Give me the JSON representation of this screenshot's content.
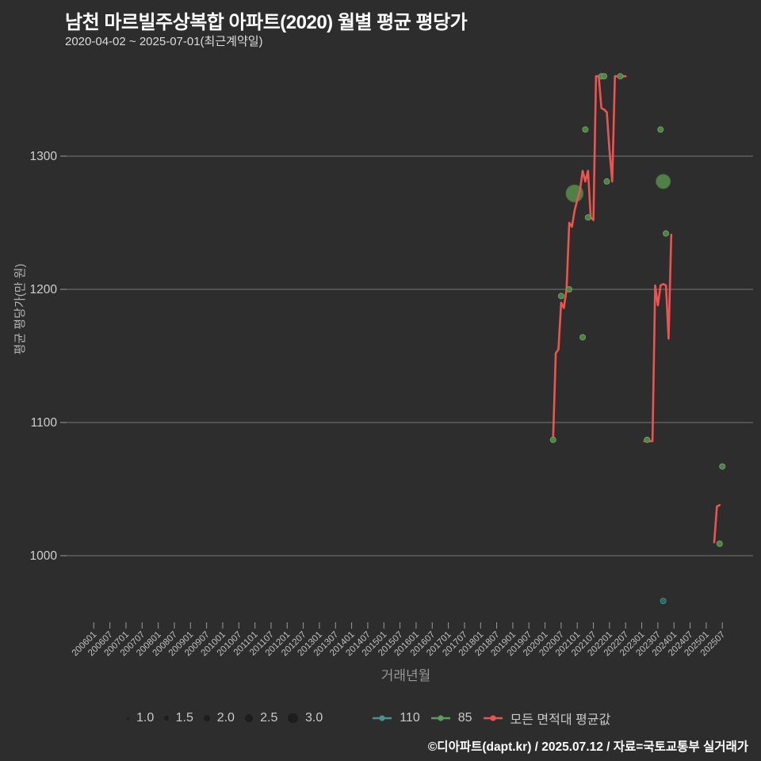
{
  "header": {
    "title": "남천 마르빌주상복합 아파트(2020) 월별 평균 평당가",
    "subtitle": "2020-04-02 ~ 2025-07-01(최근계약일)"
  },
  "y_axis": {
    "title": "평균 평당가(만 원)",
    "tick_labels": [
      "1000",
      "1100",
      "1200",
      "1300"
    ]
  },
  "x_axis": {
    "title": "거래년월",
    "tick_labels": [
      "200601",
      "200607",
      "200701",
      "200707",
      "200801",
      "200807",
      "200901",
      "200907",
      "201001",
      "201007",
      "201101",
      "201107",
      "201201",
      "201207",
      "201301",
      "201307",
      "201401",
      "201407",
      "201501",
      "201507",
      "201601",
      "201607",
      "201701",
      "201707",
      "201801",
      "201807",
      "201901",
      "201907",
      "202001",
      "202007",
      "202101",
      "202107",
      "202201",
      "202207",
      "202301",
      "202307",
      "202401",
      "202407",
      "202501",
      "202507"
    ]
  },
  "legend": {
    "size_items": [
      {
        "label": "1.0",
        "size": 1.0
      },
      {
        "label": "1.5",
        "size": 1.5
      },
      {
        "label": "2.0",
        "size": 2.0
      },
      {
        "label": "2.5",
        "size": 2.5
      },
      {
        "label": "3.0",
        "size": 3.0
      }
    ],
    "series_items": [
      {
        "label": "110",
        "color": "#45948f"
      },
      {
        "label": "85",
        "color": "#57a257"
      },
      {
        "label": "모든 면적대 평균값",
        "color": "#ef5350"
      }
    ]
  },
  "footer": {
    "credit": "©디아파트(dapt.kr) / 2025.07.12 / 자료=국토교통부 실거래가"
  },
  "chart_data": {
    "type": "line",
    "title": "남천 마르빌주상복합 아파트(2020) 월별 평균 평당가",
    "xlabel": "거래년월",
    "ylabel": "평균 평당가(만 원)",
    "x_range": [
      "200601",
      "202507"
    ],
    "x_tick_step_months": 6,
    "ylim": [
      950,
      1370
    ],
    "y_gridlines": [
      1000,
      1100,
      1200,
      1300
    ],
    "grid": "horizontal",
    "legend_position": "bottom",
    "series": [
      {
        "name": "모든 면적대 평균값",
        "type": "line",
        "color": "#ef5350",
        "segments": [
          [
            [
              "202004",
              1087
            ],
            [
              "202005",
              1152
            ],
            [
              "202006",
              1155
            ],
            [
              "202007",
              1190
            ],
            [
              "202008",
              1186
            ],
            [
              "202009",
              1200
            ],
            [
              "202010",
              1250
            ],
            [
              "202011",
              1247
            ],
            [
              "202012",
              1259
            ],
            [
              "202101",
              1267
            ],
            [
              "202102",
              1274
            ],
            [
              "202103",
              1289
            ],
            [
              "202104",
              1281
            ],
            [
              "202105",
              1289
            ],
            [
              "202106",
              1254
            ],
            [
              "202107",
              1252
            ],
            [
              "202108",
              1360
            ],
            [
              "202109",
              1360
            ],
            [
              "202110",
              1336
            ],
            [
              "202111",
              1335
            ],
            [
              "202112",
              1333
            ],
            [
              "202201",
              1304
            ],
            [
              "202202",
              1281
            ],
            [
              "202203",
              1360
            ],
            [
              "202204",
              1360
            ],
            [
              "202205",
              1360
            ],
            [
              "202206",
              1360
            ],
            [
              "202207",
              1360
            ]
          ],
          [
            [
              "202302",
              1086
            ],
            [
              "202303",
              1086
            ],
            [
              "202304",
              1086
            ],
            [
              "202305",
              1086
            ],
            [
              "202306",
              1203
            ],
            [
              "202307",
              1188
            ],
            [
              "202308",
              1203
            ],
            [
              "202309",
              1204
            ],
            [
              "202310",
              1203
            ],
            [
              "202311",
              1163
            ],
            [
              "202312",
              1241
            ]
          ],
          [
            [
              "202504",
              1010
            ],
            [
              "202505",
              1037
            ],
            [
              "202506",
              1038
            ]
          ]
        ]
      },
      {
        "name": "85",
        "type": "scatter",
        "color": "#528449",
        "points": [
          {
            "x": "202004",
            "y": 1087,
            "size": 1.0
          },
          {
            "x": "202007",
            "y": 1195,
            "size": 1.0
          },
          {
            "x": "202010",
            "y": 1200,
            "size": 1.0
          },
          {
            "x": "202012",
            "y": 1272,
            "size": 3.0
          },
          {
            "x": "202103",
            "y": 1164,
            "size": 1.0
          },
          {
            "x": "202104",
            "y": 1320,
            "size": 1.0
          },
          {
            "x": "202105",
            "y": 1254,
            "size": 1.0
          },
          {
            "x": "202110",
            "y": 1360,
            "size": 1.0
          },
          {
            "x": "202111",
            "y": 1360,
            "size": 1.0
          },
          {
            "x": "202112",
            "y": 1281,
            "size": 1.0
          },
          {
            "x": "202205",
            "y": 1360,
            "size": 1.0
          },
          {
            "x": "202303",
            "y": 1087,
            "size": 1.0
          },
          {
            "x": "202308",
            "y": 1320,
            "size": 1.0
          },
          {
            "x": "202309",
            "y": 1281,
            "size": 2.5
          },
          {
            "x": "202310",
            "y": 1242,
            "size": 1.0
          },
          {
            "x": "202506",
            "y": 1009,
            "size": 1.0
          },
          {
            "x": "202507",
            "y": 1067,
            "size": 1.0
          }
        ]
      },
      {
        "name": "110",
        "type": "scatter",
        "color": "#31696d",
        "points": [
          {
            "x": "202309",
            "y": 966,
            "size": 1.0
          }
        ]
      }
    ]
  }
}
